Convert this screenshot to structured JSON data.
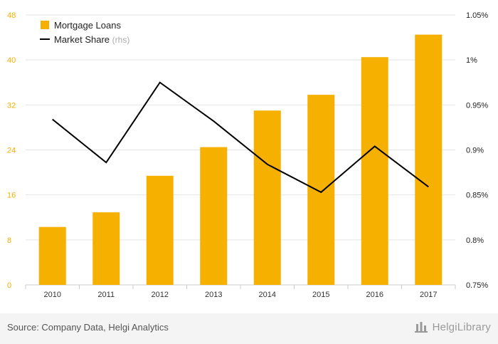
{
  "chart_data": {
    "type": "bar",
    "categories": [
      "2010",
      "2011",
      "2012",
      "2013",
      "2014",
      "2015",
      "2016",
      "2017"
    ],
    "series": [
      {
        "name": "Mortgage Loans",
        "type": "bar",
        "axis": "left",
        "color": "#f5b000",
        "values": [
          10.3,
          12.9,
          19.4,
          24.5,
          31.0,
          33.8,
          40.5,
          44.5
        ]
      },
      {
        "name": "Market Share",
        "suffix": "(rhs)",
        "type": "line",
        "axis": "right",
        "color": "#000000",
        "values": [
          0.934,
          0.886,
          0.975,
          0.932,
          0.884,
          0.853,
          0.904,
          0.859
        ]
      }
    ],
    "left_axis": {
      "ylim": [
        0,
        48
      ],
      "ticks": [
        "0",
        "8",
        "16",
        "24",
        "32",
        "40",
        "48"
      ],
      "color": "#f5b000"
    },
    "right_axis": {
      "ylim": [
        0.75,
        1.05
      ],
      "ticks": [
        "0.75%",
        "0.8%",
        "0.85%",
        "0.9%",
        "0.95%",
        "1%",
        "1.05%"
      ]
    },
    "grid": true,
    "legend": "top-left"
  },
  "footer": {
    "source": "Source: Company Data, Helgi Analytics",
    "brand": "HelgiLibrary",
    "brand_icon": "library-icon"
  }
}
